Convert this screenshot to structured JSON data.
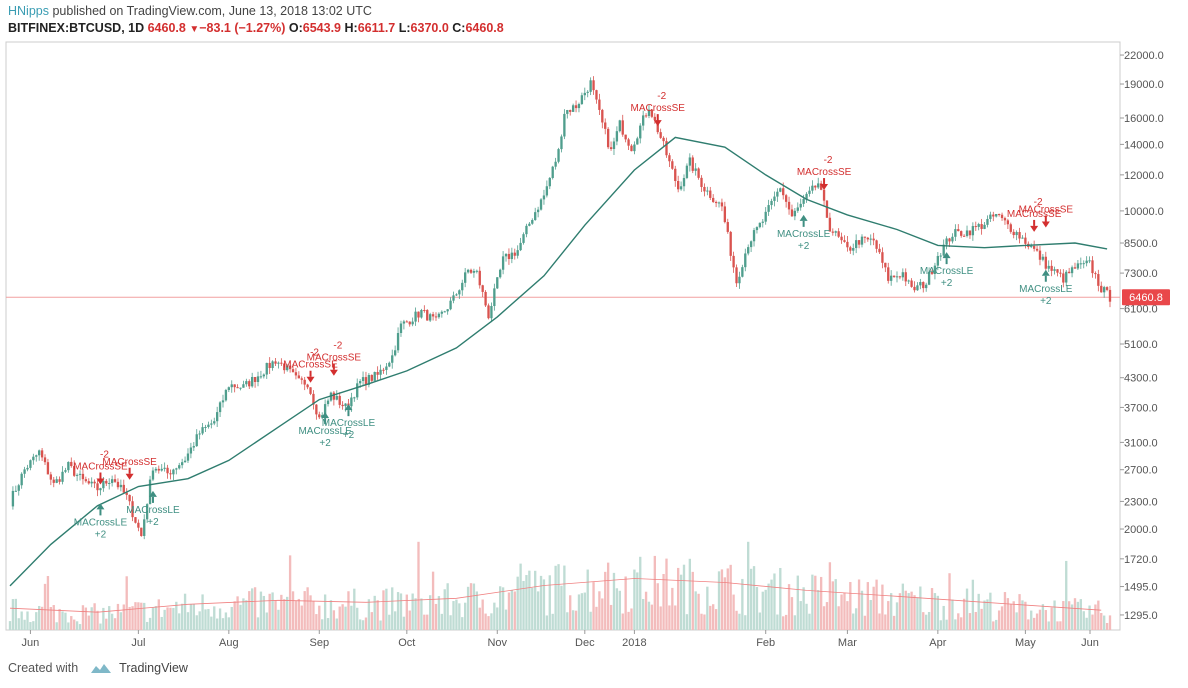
{
  "header": {
    "author": "HNipps",
    "published_text": "published on TradingView.com, June 13, 2018 13:02 UTC",
    "symbol": "BITFINEX:BTCUSD, 1D",
    "last": "6460.8",
    "change": "−83.1 (−1.27%)",
    "o_label": "O:",
    "o": "6543.9",
    "h_label": "H:",
    "h": "6611.7",
    "l_label": "L:",
    "l": "6370.0",
    "c_label": "C:",
    "c": "6460.8"
  },
  "footer": {
    "created_with": "Created with",
    "brand": "TradingView"
  },
  "colors": {
    "up": "#4f9e8d",
    "down": "#d9534f",
    "ma": "#2f7d6f",
    "vol_up": "#bfdcd4",
    "vol_down": "#f3bcbc",
    "price_line": "#f2a0a0"
  },
  "chart_data": {
    "type": "candlestick",
    "y_scale": "log",
    "ylim": [
      1200,
      23500
    ],
    "y_ticks": [
      "22000.0",
      "19000.0",
      "16000.0",
      "14000.0",
      "12000.0",
      "10000.0",
      "8500.0",
      "7300.0",
      "6100.0",
      "5100.0",
      "4300.0",
      "3700.0",
      "3100.0",
      "2700.0",
      "2300.0",
      "2000.0",
      "1720.0",
      "1495.0",
      "1295.0"
    ],
    "x_labels": [
      "Jun",
      "Jul",
      "Aug",
      "Sep",
      "Oct",
      "Nov",
      "Dec",
      "2018",
      "Feb",
      "Mar",
      "Apr",
      "May",
      "Jun"
    ],
    "x_start": "2017-06-01",
    "x_end": "2018-06-13",
    "last_price": 6460.8,
    "last_price_label": "6460.8",
    "price_path": [
      [
        "2017-06-01",
        2300
      ],
      [
        "2017-06-06",
        2700
      ],
      [
        "2017-06-11",
        2950
      ],
      [
        "2017-06-16",
        2500
      ],
      [
        "2017-06-21",
        2750
      ],
      [
        "2017-06-26",
        2550
      ],
      [
        "2017-07-01",
        2450
      ],
      [
        "2017-07-06",
        2600
      ],
      [
        "2017-07-11",
        2350
      ],
      [
        "2017-07-16",
        1930
      ],
      [
        "2017-07-20",
        2750
      ],
      [
        "2017-07-25",
        2650
      ],
      [
        "2017-07-31",
        2850
      ],
      [
        "2017-08-05",
        3250
      ],
      [
        "2017-08-10",
        3450
      ],
      [
        "2017-08-15",
        4150
      ],
      [
        "2017-08-20",
        4100
      ],
      [
        "2017-08-25",
        4350
      ],
      [
        "2017-08-31",
        4700
      ],
      [
        "2017-09-03",
        4550
      ],
      [
        "2017-09-08",
        4200
      ],
      [
        "2017-09-11",
        4200
      ],
      [
        "2017-09-15",
        3500
      ],
      [
        "2017-09-19",
        3950
      ],
      [
        "2017-09-24",
        3700
      ],
      [
        "2017-09-29",
        4200
      ],
      [
        "2017-10-05",
        4350
      ],
      [
        "2017-10-10",
        4800
      ],
      [
        "2017-10-13",
        5600
      ],
      [
        "2017-10-20",
        6000
      ],
      [
        "2017-10-25",
        5700
      ],
      [
        "2017-10-31",
        6400
      ],
      [
        "2017-11-05",
        7400
      ],
      [
        "2017-11-08",
        7300
      ],
      [
        "2017-11-12",
        5900
      ],
      [
        "2017-11-17",
        7800
      ],
      [
        "2017-11-22",
        8200
      ],
      [
        "2017-11-27",
        9700
      ],
      [
        "2017-12-01",
        10800
      ],
      [
        "2017-12-06",
        13500
      ],
      [
        "2017-12-08",
        16500
      ],
      [
        "2017-12-12",
        17000
      ],
      [
        "2017-12-17",
        19100
      ],
      [
        "2017-12-21",
        15500
      ],
      [
        "2017-12-24",
        13500
      ],
      [
        "2017-12-27",
        15500
      ],
      [
        "2017-12-31",
        13800
      ],
      [
        "2018-01-06",
        17000
      ],
      [
        "2018-01-10",
        14500
      ],
      [
        "2018-01-16",
        11200
      ],
      [
        "2018-01-20",
        12800
      ],
      [
        "2018-01-25",
        11200
      ],
      [
        "2018-01-31",
        10200
      ],
      [
        "2018-02-05",
        7000
      ],
      [
        "2018-02-09",
        8500
      ],
      [
        "2018-02-14",
        9500
      ],
      [
        "2018-02-20",
        11300
      ],
      [
        "2018-02-24",
        9700
      ],
      [
        "2018-02-28",
        10500
      ],
      [
        "2018-03-05",
        11500
      ],
      [
        "2018-03-09",
        9200
      ],
      [
        "2018-03-15",
        8200
      ],
      [
        "2018-03-19",
        8600
      ],
      [
        "2018-03-24",
        8600
      ],
      [
        "2018-03-29",
        7100
      ],
      [
        "2018-04-03",
        7300
      ],
      [
        "2018-04-06",
        6700
      ],
      [
        "2018-04-11",
        6950
      ],
      [
        "2018-04-15",
        8000
      ],
      [
        "2018-04-20",
        8900
      ],
      [
        "2018-04-25",
        9000
      ],
      [
        "2018-04-30",
        9300
      ],
      [
        "2018-05-05",
        9800
      ],
      [
        "2018-05-09",
        9300
      ],
      [
        "2018-05-14",
        8700
      ],
      [
        "2018-05-18",
        8200
      ],
      [
        "2018-05-23",
        7500
      ],
      [
        "2018-05-28",
        7100
      ],
      [
        "2018-06-01",
        7500
      ],
      [
        "2018-06-06",
        7650
      ],
      [
        "2018-06-10",
        6750
      ],
      [
        "2018-06-13",
        6460
      ]
    ],
    "ma_path": [
      [
        "2017-06-01",
        1500
      ],
      [
        "2017-06-15",
        1850
      ],
      [
        "2017-07-01",
        2250
      ],
      [
        "2017-07-15",
        2480
      ],
      [
        "2017-08-01",
        2580
      ],
      [
        "2017-08-15",
        2830
      ],
      [
        "2017-09-01",
        3350
      ],
      [
        "2017-09-15",
        3850
      ],
      [
        "2017-10-01",
        4150
      ],
      [
        "2017-10-15",
        4450
      ],
      [
        "2017-11-01",
        5000
      ],
      [
        "2017-11-15",
        5850
      ],
      [
        "2017-12-01",
        7200
      ],
      [
        "2017-12-15",
        9300
      ],
      [
        "2018-01-01",
        12300
      ],
      [
        "2018-01-15",
        14500
      ],
      [
        "2018-02-01",
        13800
      ],
      [
        "2018-02-15",
        12000
      ],
      [
        "2018-03-01",
        10600
      ],
      [
        "2018-03-15",
        9800
      ],
      [
        "2018-04-01",
        9100
      ],
      [
        "2018-04-15",
        8400
      ],
      [
        "2018-05-01",
        8300
      ],
      [
        "2018-05-15",
        8400
      ],
      [
        "2018-06-01",
        8500
      ],
      [
        "2018-06-12",
        8250
      ]
    ],
    "volume_ylim": [
      0,
      100
    ],
    "volume_ma_path": [
      [
        "2017-06-01",
        22
      ],
      [
        "2017-07-01",
        18
      ],
      [
        "2017-08-01",
        26
      ],
      [
        "2017-09-01",
        30
      ],
      [
        "2017-10-01",
        28
      ],
      [
        "2017-11-01",
        32
      ],
      [
        "2017-12-01",
        45
      ],
      [
        "2018-01-01",
        52
      ],
      [
        "2018-02-01",
        48
      ],
      [
        "2018-03-01",
        40
      ],
      [
        "2018-04-01",
        34
      ],
      [
        "2018-05-01",
        28
      ],
      [
        "2018-06-10",
        20
      ]
    ],
    "signals": [
      {
        "type": "short",
        "label": "MACrossSE",
        "qty": "-2",
        "date": "2017-07-02",
        "price": 2480
      },
      {
        "type": "short",
        "label": "MACrossSE",
        "qty": "",
        "date": "2017-07-12",
        "price": 2540
      },
      {
        "type": "long",
        "label": "MACrossLE",
        "qty": "+2",
        "date": "2017-07-02",
        "price": 2300
      },
      {
        "type": "long",
        "label": "MACrossLE",
        "qty": "+2",
        "date": "2017-07-20",
        "price": 2450
      },
      {
        "type": "short",
        "label": "MACrossSE",
        "qty": "-2",
        "date": "2017-09-12",
        "price": 4150
      },
      {
        "type": "short",
        "label": "MACrossSE",
        "qty": "-2",
        "date": "2017-09-20",
        "price": 4300
      },
      {
        "type": "long",
        "label": "MACrossLE",
        "qty": "+2",
        "date": "2017-09-17",
        "price": 3650
      },
      {
        "type": "long",
        "label": "MACrossLE",
        "qty": "+2",
        "date": "2017-09-25",
        "price": 3800
      },
      {
        "type": "short",
        "label": "MACrossSE",
        "qty": "-2",
        "date": "2018-01-09",
        "price": 15200
      },
      {
        "type": "short",
        "label": "MACrossSE",
        "qty": "-2",
        "date": "2018-03-07",
        "price": 11000
      },
      {
        "type": "long",
        "label": "MACrossLE",
        "qty": "+2",
        "date": "2018-02-28",
        "price": 9900
      },
      {
        "type": "long",
        "label": "MACrossLE",
        "qty": "+2",
        "date": "2018-04-18",
        "price": 8200
      },
      {
        "type": "short",
        "label": "MACrossSE",
        "qty": "-2",
        "date": "2018-05-18",
        "price": 8900
      },
      {
        "type": "short",
        "label": "MACrossSE",
        "qty": "",
        "date": "2018-05-22",
        "price": 9100
      },
      {
        "type": "long",
        "label": "MACrossLE",
        "qty": "+2",
        "date": "2018-05-22",
        "price": 7500
      }
    ]
  }
}
